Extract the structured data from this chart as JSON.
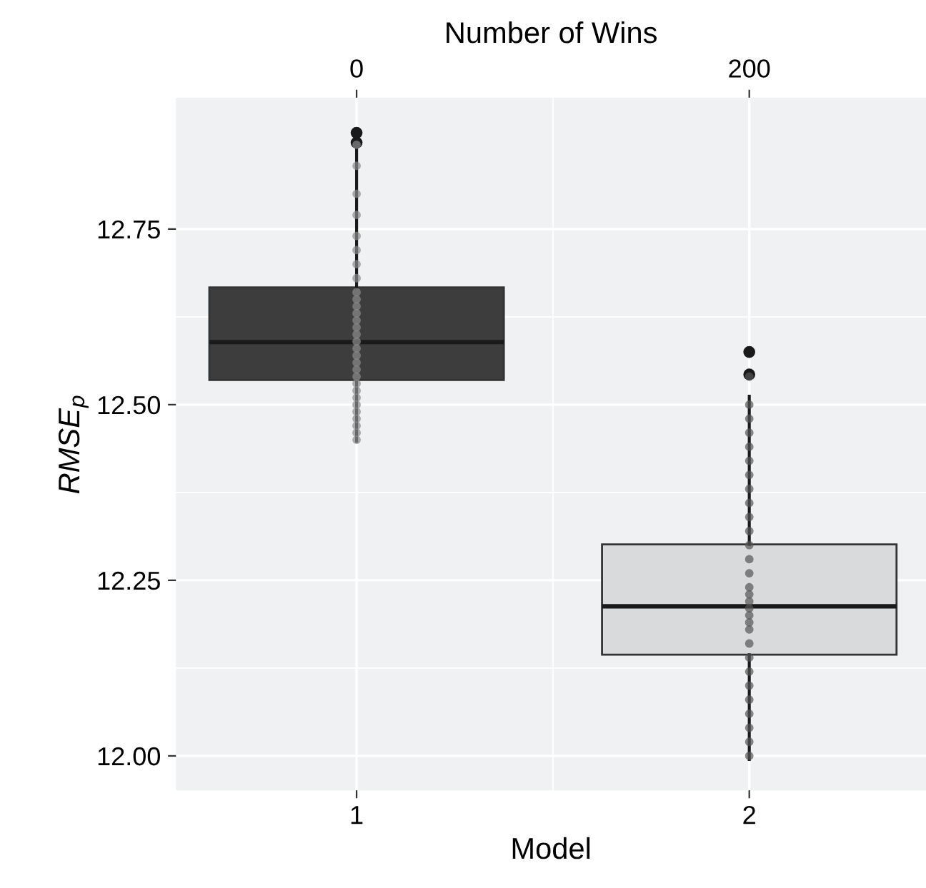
{
  "chart_data": {
    "type": "box",
    "xlabel": "Model",
    "ylabel": "RMSE$_{p}$",
    "x2label": "Number of Wins",
    "categories": [
      "1",
      "2"
    ],
    "boxes": [
      {
        "low": 12.448,
        "q1": 12.535,
        "median": 12.589,
        "q3": 12.667,
        "high": 12.866,
        "outliers": [
          12.873,
          12.887
        ]
      },
      {
        "low": 11.995,
        "q1": 12.144,
        "median": 12.213,
        "q3": 12.301,
        "high": 12.512,
        "outliers": [
          12.543,
          12.575
        ]
      }
    ],
    "colors": [
      "#3d3d3d",
      "#d9dadc"
    ],
    "series": [
      {
        "type": "scatter",
        "color": "#8c8c8c",
        "x": [
          "1",
          "1",
          "1",
          "1",
          "1",
          "1",
          "1",
          "1",
          "1",
          "1",
          "1",
          "1",
          "1",
          "1",
          "1",
          "1",
          "1",
          "1",
          "1",
          "1",
          "1",
          "1",
          "1",
          "1",
          "1",
          "1",
          "1",
          "1",
          "1",
          "1"
        ],
        "values": [
          12.45,
          12.46,
          12.47,
          12.48,
          12.49,
          12.5,
          12.51,
          12.52,
          12.53,
          12.54,
          12.55,
          12.56,
          12.57,
          12.58,
          12.59,
          12.6,
          12.61,
          12.62,
          12.63,
          12.64,
          12.65,
          12.66,
          12.68,
          12.7,
          12.72,
          12.74,
          12.77,
          12.8,
          12.84,
          12.87
        ]
      },
      {
        "type": "scatter",
        "color": "#555555",
        "x": [
          "2",
          "2",
          "2",
          "2",
          "2",
          "2",
          "2",
          "2",
          "2",
          "2",
          "2",
          "2",
          "2",
          "2",
          "2",
          "2",
          "2",
          "2",
          "2",
          "2",
          "2",
          "2",
          "2",
          "2",
          "2",
          "2",
          "2",
          "2",
          "2",
          "2"
        ],
        "values": [
          12.0,
          12.02,
          12.04,
          12.06,
          12.08,
          12.1,
          12.12,
          12.14,
          12.16,
          12.18,
          12.19,
          12.2,
          12.21,
          12.22,
          12.23,
          12.24,
          12.26,
          12.28,
          12.3,
          12.32,
          12.34,
          12.36,
          12.38,
          12.4,
          12.42,
          12.44,
          12.46,
          12.48,
          12.5,
          12.54
        ]
      }
    ],
    "ylim": [
      11.951,
      12.937
    ],
    "yticks": [
      {
        "value": 12.0,
        "label": "12.00"
      },
      {
        "value": 12.25,
        "label": "12.25"
      },
      {
        "value": 12.5,
        "label": "12.50"
      },
      {
        "value": 12.75,
        "label": "12.75"
      }
    ],
    "x2lim": [
      -92,
      290
    ],
    "x2ticks": [
      0,
      200
    ],
    "grid": true
  }
}
